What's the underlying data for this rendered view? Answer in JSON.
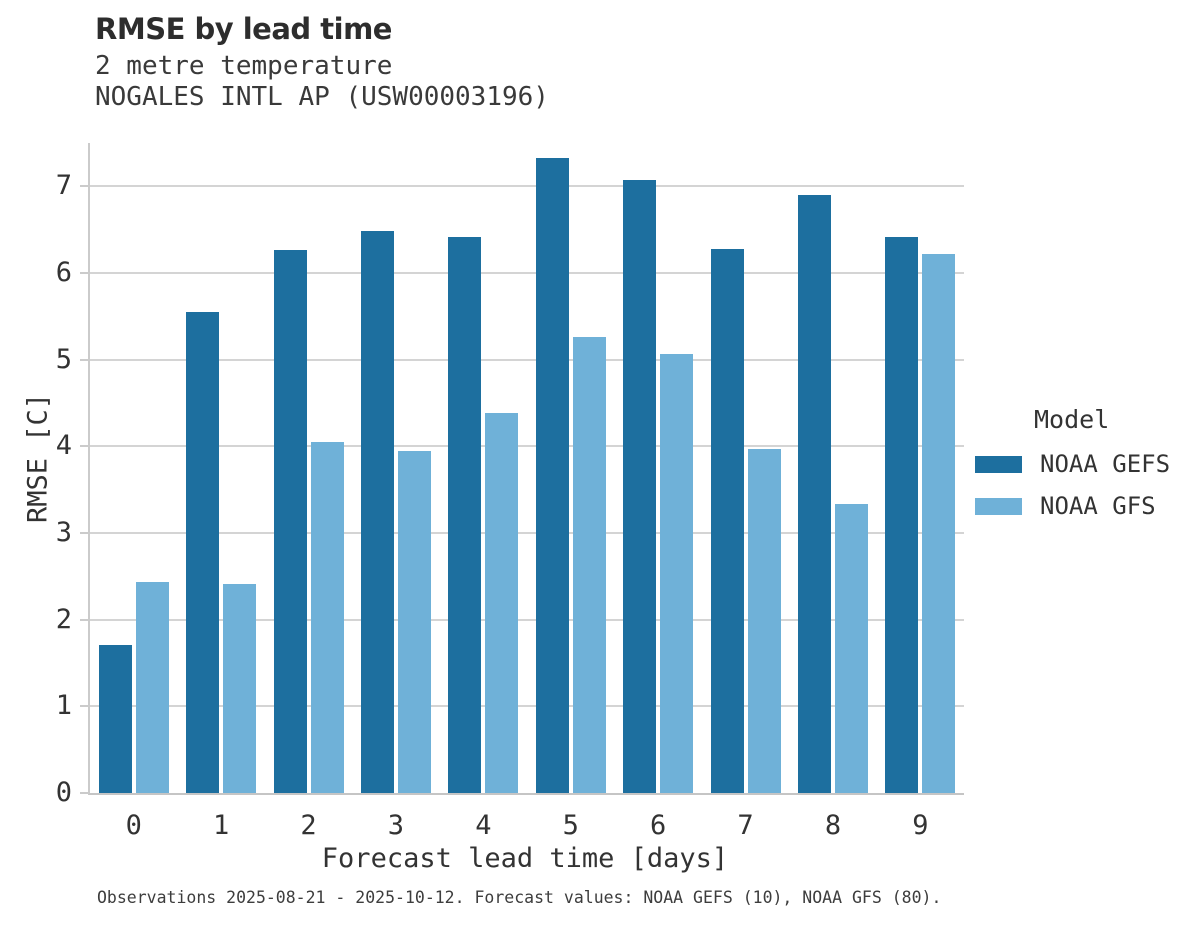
{
  "header": {
    "title": "RMSE by lead time",
    "subtitle": "2 metre temperature",
    "station": "NOGALES INTL AP (USW00003196)"
  },
  "chart_data": {
    "type": "bar",
    "title": "RMSE by lead time",
    "subtitle": "2 metre temperature",
    "station": "NOGALES INTL AP (USW00003196)",
    "categories": [
      "0",
      "1",
      "2",
      "3",
      "4",
      "5",
      "6",
      "7",
      "8",
      "9"
    ],
    "series": [
      {
        "name": "NOAA GEFS",
        "color": "#1d6f9f",
        "values": [
          1.71,
          5.55,
          6.27,
          6.48,
          6.42,
          7.33,
          7.07,
          6.28,
          6.9,
          6.42
        ]
      },
      {
        "name": "NOAA GFS",
        "color": "#6fb1d8",
        "values": [
          2.43,
          2.41,
          4.05,
          3.95,
          4.38,
          5.26,
          5.07,
          3.97,
          3.33,
          6.22
        ]
      }
    ],
    "xlabel": "Forecast lead time [days]",
    "ylabel": "RMSE [C]",
    "ylim": [
      0,
      7.5
    ],
    "yticks": [
      0,
      1,
      2,
      3,
      4,
      5,
      6,
      7
    ],
    "grid": true,
    "legend_title": "Model",
    "legend_position": "right"
  },
  "footer": {
    "note": "Observations 2025-08-21 - 2025-10-12. Forecast values: NOAA GEFS (10), NOAA GFS (80)."
  },
  "colors": {
    "bar_dark": "#1d6f9f",
    "bar_light": "#6fb1d8",
    "gridline": "#d4d4d4",
    "spine": "#c5c5c5",
    "title_text": "#2d2d2d",
    "body_text": "#333333"
  }
}
